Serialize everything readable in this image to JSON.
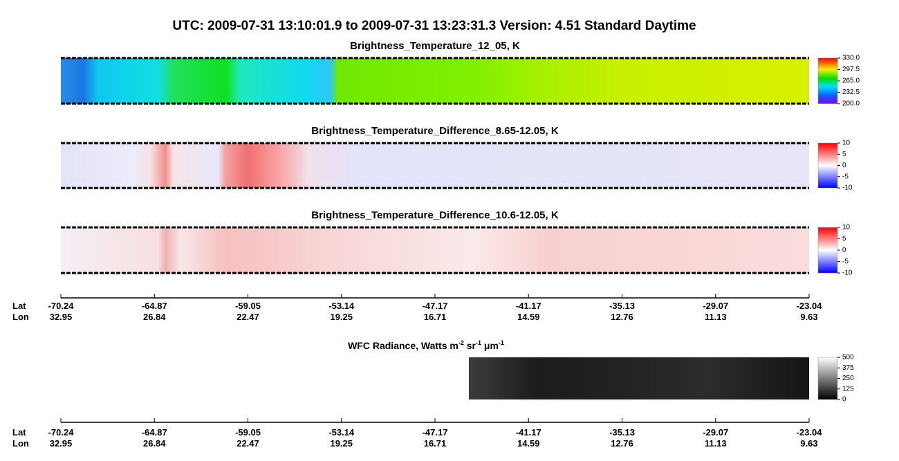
{
  "title": "UTC:  2009-07-31   13:10:01.9  to  2009-07-31   13:23:31.3    Version: 4.51  Standard Daytime",
  "panels": [
    {
      "title": "Brightness_Temperature_12_05, K",
      "clim": [
        200,
        330
      ],
      "cticks": [
        {
          "value": 330,
          "label": "330.0"
        },
        297.5,
        {
          "value": 265,
          "label": "265.0"
        },
        232.5,
        {
          "value": 200,
          "label": "200.0"
        }
      ]
    },
    {
      "title": "Brightness_Temperature_Difference_8.65-12.05, K",
      "clim": [
        -10,
        10
      ],
      "cticks": [
        10,
        5,
        0,
        -5,
        -10
      ]
    },
    {
      "title": "Brightness_Temperature_Difference_10.6-12.05, K",
      "clim": [
        -10,
        10
      ],
      "cticks": [
        10,
        5,
        0,
        -5,
        -10
      ]
    }
  ],
  "wfc": {
    "title_parts": [
      "WFC Radiance, Watts m",
      "-2",
      " sr",
      "-1",
      " μm",
      "-1"
    ],
    "clim": [
      0,
      500
    ],
    "cticks": [
      500,
      375,
      250,
      125,
      0
    ]
  },
  "axes": [
    {
      "lat_label": "Lat",
      "lon_label": "Lon",
      "lat": [
        "-70.24",
        "-64.87",
        "-59.05",
        "-53.14",
        "-47.17",
        "-41.17",
        "-35.13",
        "-29.07",
        "-23.04"
      ],
      "lon": [
        "32.95",
        "26.84",
        "22.47",
        "19.25",
        "16.71",
        "14.59",
        "12.76",
        "11.13",
        "9.63"
      ]
    },
    {
      "lat_label": "Lat",
      "lon_label": "Lon",
      "lat": [
        "-70.24",
        "-64.87",
        "-59.05",
        "-53.14",
        "-47.17",
        "-41.17",
        "-35.13",
        "-29.07",
        "-23.04"
      ],
      "lon": [
        "32.95",
        "26.84",
        "22.47",
        "19.25",
        "16.71",
        "14.59",
        "12.76",
        "11.13",
        "9.63"
      ]
    }
  ]
}
